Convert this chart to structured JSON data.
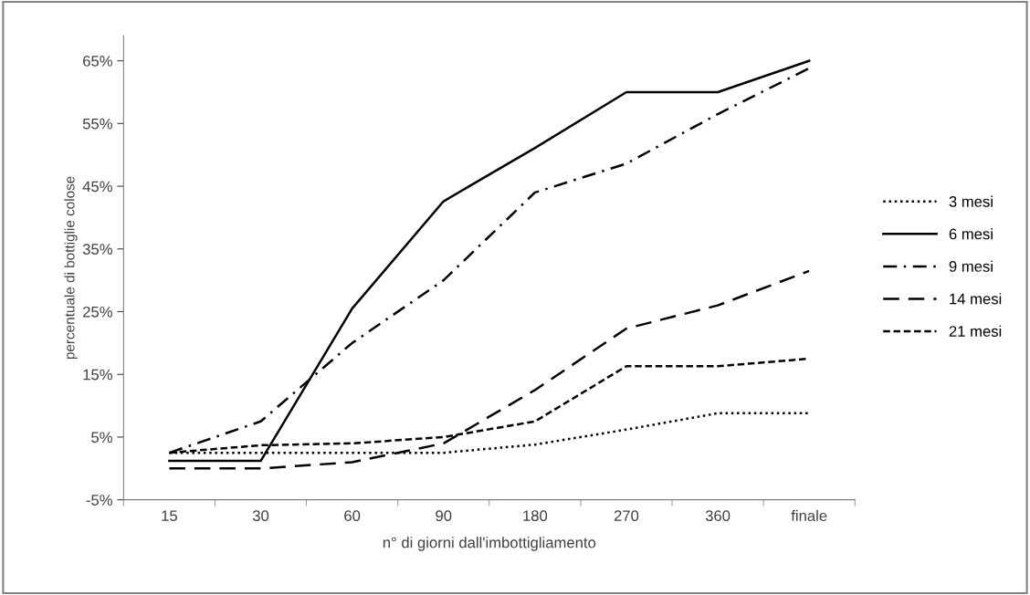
{
  "chart_data": {
    "type": "line",
    "xlabel": "n° di giorni dall'imbottigliamento",
    "ylabel": "percentuale di bottiglie colose",
    "categories": [
      "15",
      "30",
      "60",
      "90",
      "180",
      "270",
      "360",
      "finale"
    ],
    "series": [
      {
        "name": "3 mesi",
        "color": "#000000",
        "line_style": "dotted",
        "values": [
          2.5,
          2.5,
          2.5,
          2.5,
          3.8,
          6.2,
          8.8,
          8.8
        ]
      },
      {
        "name": "6 mesi",
        "color": "#000000",
        "line_style": "solid",
        "values": [
          1.2,
          1.2,
          25.5,
          42.6,
          51.1,
          60,
          60,
          65
        ]
      },
      {
        "name": "9 mesi",
        "color": "#000000",
        "line_style": "dashdot",
        "values": [
          2.5,
          7.5,
          20,
          30,
          44,
          48.6,
          56.5,
          63.8
        ]
      },
      {
        "name": "14 mesi",
        "color": "#000000",
        "line_style": "longdash",
        "values": [
          0,
          0,
          1,
          4,
          12.5,
          22.3,
          26,
          31.5
        ]
      },
      {
        "name": "21 mesi",
        "color": "#000000",
        "line_style": "dashed",
        "values": [
          2.5,
          3.7,
          4,
          5,
          7.5,
          16.3,
          16.3,
          17.5
        ]
      }
    ],
    "ylim": [
      -5,
      69
    ],
    "yticks": [
      {
        "value": -5,
        "label": "-5%"
      },
      {
        "value": 5,
        "label": "5%"
      },
      {
        "value": 15,
        "label": "15%"
      },
      {
        "value": 25,
        "label": "25%"
      },
      {
        "value": 35,
        "label": "35%"
      },
      {
        "value": 45,
        "label": "45%"
      },
      {
        "value": 55,
        "label": "55%"
      },
      {
        "value": 65,
        "label": "65%"
      }
    ],
    "grid": false,
    "legend": "right",
    "marker": "none"
  }
}
